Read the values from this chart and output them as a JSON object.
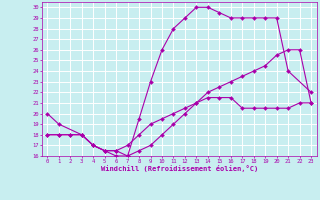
{
  "xlabel": "Windchill (Refroidissement éolien,°C)",
  "bg_color": "#c8eef0",
  "grid_color": "#ffffff",
  "line_color": "#aa00aa",
  "xlim": [
    -0.5,
    23.5
  ],
  "ylim": [
    16,
    30.5
  ],
  "xticks": [
    0,
    1,
    2,
    3,
    4,
    5,
    6,
    7,
    8,
    9,
    10,
    11,
    12,
    13,
    14,
    15,
    16,
    17,
    18,
    19,
    20,
    21,
    22,
    23
  ],
  "yticks": [
    16,
    17,
    18,
    19,
    20,
    21,
    22,
    23,
    24,
    25,
    26,
    27,
    28,
    29,
    30
  ],
  "curve1_x": [
    0,
    1,
    3,
    4,
    5,
    6,
    7,
    8,
    9,
    10,
    11,
    12,
    13,
    14,
    15,
    16,
    17,
    18,
    19,
    20,
    21,
    23
  ],
  "curve1_y": [
    20,
    19,
    18,
    17,
    16.5,
    16.5,
    16,
    19.5,
    23,
    26,
    28,
    29,
    30,
    30,
    29.5,
    29,
    29,
    29,
    29,
    29,
    24,
    22
  ],
  "curve2_x": [
    0,
    1,
    2,
    3,
    4,
    5,
    6,
    7,
    8,
    9,
    10,
    11,
    12,
    13,
    14,
    15,
    16,
    17,
    18,
    19,
    20,
    21,
    22,
    23
  ],
  "curve2_y": [
    18,
    18,
    18,
    18,
    17,
    16.5,
    16.5,
    17,
    18,
    19,
    19.5,
    20,
    20.5,
    21,
    21.5,
    21.5,
    21.5,
    20.5,
    20.5,
    20.5,
    20.5,
    20.5,
    21,
    21
  ],
  "curve3_x": [
    0,
    1,
    2,
    3,
    4,
    5,
    6,
    7,
    8,
    9,
    10,
    11,
    12,
    13,
    14,
    15,
    16,
    17,
    18,
    19,
    20,
    21,
    22,
    23
  ],
  "curve3_y": [
    18,
    18,
    18,
    18,
    17,
    16.5,
    16,
    16,
    16.5,
    17,
    18,
    19,
    20,
    21,
    22,
    22.5,
    23,
    23.5,
    24,
    24.5,
    25.5,
    26,
    26,
    21
  ],
  "tick_fontsize": 4.0,
  "xlabel_fontsize": 5.0,
  "marker_size": 2.0,
  "linewidth": 0.8
}
